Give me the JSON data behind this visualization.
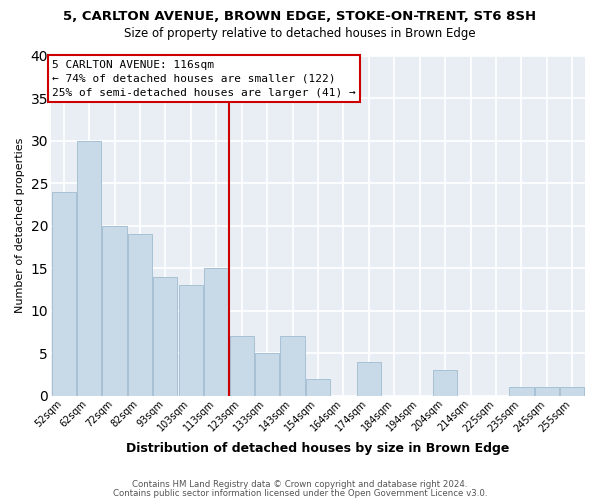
{
  "title1": "5, CARLTON AVENUE, BROWN EDGE, STOKE-ON-TRENT, ST6 8SH",
  "title2": "Size of property relative to detached houses in Brown Edge",
  "xlabel": "Distribution of detached houses by size in Brown Edge",
  "ylabel": "Number of detached properties",
  "bin_labels": [
    "52sqm",
    "62sqm",
    "72sqm",
    "82sqm",
    "93sqm",
    "103sqm",
    "113sqm",
    "123sqm",
    "133sqm",
    "143sqm",
    "154sqm",
    "164sqm",
    "174sqm",
    "184sqm",
    "194sqm",
    "204sqm",
    "214sqm",
    "225sqm",
    "235sqm",
    "245sqm",
    "255sqm"
  ],
  "bar_heights": [
    24,
    30,
    20,
    19,
    14,
    13,
    15,
    7,
    5,
    7,
    2,
    0,
    4,
    0,
    0,
    3,
    0,
    0,
    1,
    1,
    1
  ],
  "bar_color": "#c8d9e8",
  "bar_edge_color": "#a8c0d4",
  "vline_x": 6.5,
  "vline_color": "#cc0000",
  "annotation_title": "5 CARLTON AVENUE: 116sqm",
  "annotation_line1": "← 74% of detached houses are smaller (122)",
  "annotation_line2": "25% of semi-detached houses are larger (41) →",
  "annotation_box_color": "#ffffff",
  "annotation_box_edge_color": "#cc0000",
  "ylim": [
    0,
    40
  ],
  "yticks": [
    0,
    5,
    10,
    15,
    20,
    25,
    30,
    35,
    40
  ],
  "footer1": "Contains HM Land Registry data © Crown copyright and database right 2024.",
  "footer2": "Contains public sector information licensed under the Open Government Licence v3.0.",
  "bg_color": "#ffffff",
  "plot_bg_color": "#e8eef4",
  "grid_color": "#ffffff"
}
